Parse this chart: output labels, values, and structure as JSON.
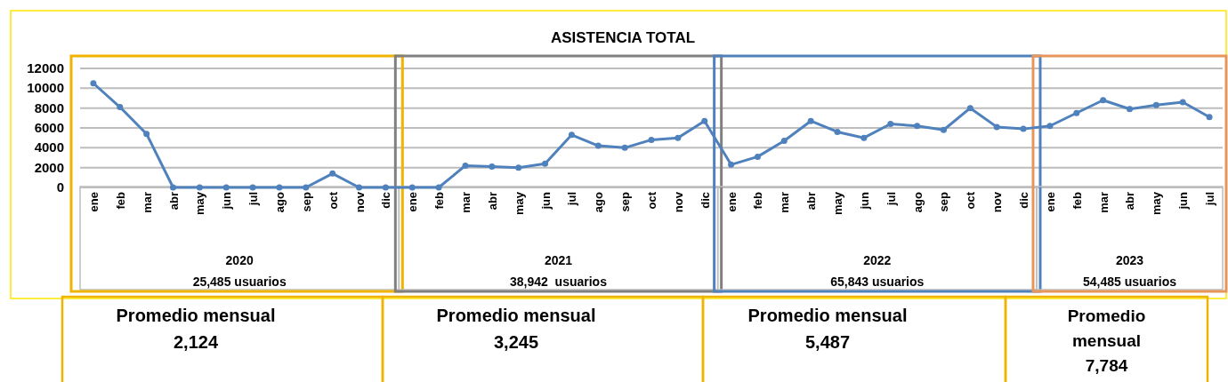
{
  "chart_data": {
    "type": "line",
    "title": "ASISTENCIA TOTAL",
    "categories": [
      "ene",
      "feb",
      "mar",
      "abr",
      "may",
      "jun",
      "jul",
      "ago",
      "sep",
      "oct",
      "nov",
      "dic",
      "ene",
      "feb",
      "mar",
      "abr",
      "may",
      "jun",
      "jul",
      "ago",
      "sep",
      "oct",
      "nov",
      "dic",
      "ene",
      "feb",
      "mar",
      "abr",
      "may",
      "jun",
      "jul",
      "ago",
      "sep",
      "oct",
      "nov",
      "dic",
      "ene",
      "feb",
      "mar",
      "abr",
      "may",
      "jun",
      "jul"
    ],
    "series": [
      {
        "color": "#4f81bd",
        "values": [
          10500,
          8100,
          5400,
          0,
          0,
          0,
          0,
          0,
          0,
          1400,
          0,
          0,
          0,
          0,
          2200,
          2100,
          2000,
          2400,
          5300,
          4200,
          4000,
          4800,
          5000,
          6700,
          2300,
          3100,
          4700,
          6700,
          5600,
          5000,
          6400,
          6200,
          5800,
          8000,
          6100,
          5900,
          6200,
          7500,
          8800,
          7900,
          8300,
          8600,
          7100
        ]
      }
    ],
    "ylim": [
      0,
      12000
    ],
    "yticks": [
      0,
      2000,
      4000,
      6000,
      8000,
      10000,
      12000
    ],
    "grid": "y",
    "marker": "circle",
    "line_style": "solid",
    "annotations": [
      "2020",
      "25,485 usuarios",
      "2021",
      "38,942  usuarios",
      "2022",
      "65,843 usuarios",
      "2023",
      "54,485 usuarios",
      "Promedio mensual 2,124",
      "Promedio mensual 3,245",
      "Promedio mensual 5,487",
      "Promedio mensual 7,784"
    ]
  }
}
